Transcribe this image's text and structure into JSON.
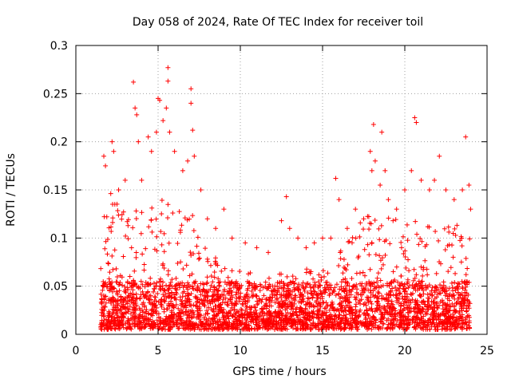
{
  "chart_data": {
    "type": "scatter",
    "title": "Day 058 of 2024, Rate Of TEC Index for receiver toil",
    "xlabel": "GPS time / hours",
    "ylabel": "ROTI / TECUs",
    "xlim": [
      0,
      25
    ],
    "ylim": [
      0,
      0.3
    ],
    "x_ticks": [
      0,
      5,
      10,
      15,
      20,
      25
    ],
    "x_tick_labels": [
      "0",
      "5",
      "10",
      "15",
      "20",
      "25"
    ],
    "y_ticks": [
      0,
      0.05,
      0.1,
      0.15,
      0.2,
      0.25,
      0.3
    ],
    "y_tick_labels": [
      "0",
      "0.05",
      "0.1",
      "0.15",
      "0.2",
      "0.25",
      "0.3"
    ],
    "grid": true,
    "marker": "+",
    "color": "#ff0000",
    "data_range_x": [
      1.5,
      24.0
    ],
    "series": [
      {
        "name": "ROTI",
        "points": [
          [
            1.7,
            0.185
          ],
          [
            1.8,
            0.175
          ],
          [
            2.2,
            0.2
          ],
          [
            2.3,
            0.19
          ],
          [
            2.6,
            0.15
          ],
          [
            3.0,
            0.16
          ],
          [
            3.5,
            0.262
          ],
          [
            3.6,
            0.235
          ],
          [
            3.7,
            0.228
          ],
          [
            3.8,
            0.2
          ],
          [
            4.0,
            0.16
          ],
          [
            4.4,
            0.205
          ],
          [
            4.6,
            0.19
          ],
          [
            4.9,
            0.21
          ],
          [
            5.0,
            0.245
          ],
          [
            5.1,
            0.243
          ],
          [
            5.3,
            0.222
          ],
          [
            5.5,
            0.235
          ],
          [
            5.6,
            0.277
          ],
          [
            5.6,
            0.263
          ],
          [
            5.7,
            0.21
          ],
          [
            6.0,
            0.19
          ],
          [
            6.5,
            0.17
          ],
          [
            6.8,
            0.18
          ],
          [
            7.0,
            0.255
          ],
          [
            7.0,
            0.24
          ],
          [
            7.1,
            0.212
          ],
          [
            7.2,
            0.185
          ],
          [
            7.6,
            0.15
          ],
          [
            8.0,
            0.12
          ],
          [
            8.5,
            0.11
          ],
          [
            9.0,
            0.13
          ],
          [
            9.5,
            0.1
          ],
          [
            10.3,
            0.095
          ],
          [
            11.0,
            0.09
          ],
          [
            11.7,
            0.085
          ],
          [
            12.5,
            0.118
          ],
          [
            12.8,
            0.143
          ],
          [
            13.0,
            0.11
          ],
          [
            13.5,
            0.1
          ],
          [
            14.0,
            0.09
          ],
          [
            14.5,
            0.095
          ],
          [
            15.0,
            0.1
          ],
          [
            15.5,
            0.1
          ],
          [
            15.8,
            0.162
          ],
          [
            16.0,
            0.14
          ],
          [
            16.5,
            0.11
          ],
          [
            17.0,
            0.13
          ],
          [
            17.5,
            0.12
          ],
          [
            17.9,
            0.19
          ],
          [
            18.0,
            0.17
          ],
          [
            18.1,
            0.218
          ],
          [
            18.2,
            0.18
          ],
          [
            18.5,
            0.155
          ],
          [
            18.6,
            0.21
          ],
          [
            18.8,
            0.17
          ],
          [
            19.0,
            0.14
          ],
          [
            19.5,
            0.13
          ],
          [
            20.0,
            0.15
          ],
          [
            20.4,
            0.17
          ],
          [
            20.6,
            0.225
          ],
          [
            20.7,
            0.22
          ],
          [
            21.0,
            0.16
          ],
          [
            21.5,
            0.15
          ],
          [
            21.8,
            0.16
          ],
          [
            22.1,
            0.185
          ],
          [
            22.5,
            0.15
          ],
          [
            23.0,
            0.14
          ],
          [
            23.5,
            0.15
          ],
          [
            23.7,
            0.205
          ],
          [
            23.9,
            0.155
          ],
          [
            24.0,
            0.13
          ]
        ]
      }
    ],
    "density_profile": {
      "description": "Dense band of points between ROTI 0.005 and ~0.06 across hours 1.5-24, with a denser/higher core (up to ~0.15) near hours 2-8 and 17-24.",
      "hours": [
        1.5,
        2,
        3,
        4,
        5,
        6,
        7,
        8,
        9,
        10,
        11,
        12,
        13,
        14,
        15,
        16,
        17,
        18,
        19,
        20,
        21,
        22,
        23,
        24
      ],
      "typical_upper": [
        0.15,
        0.14,
        0.12,
        0.12,
        0.13,
        0.13,
        0.12,
        0.08,
        0.06,
        0.06,
        0.05,
        0.05,
        0.06,
        0.06,
        0.06,
        0.08,
        0.1,
        0.12,
        0.12,
        0.11,
        0.11,
        0.1,
        0.11,
        0.1
      ]
    }
  }
}
